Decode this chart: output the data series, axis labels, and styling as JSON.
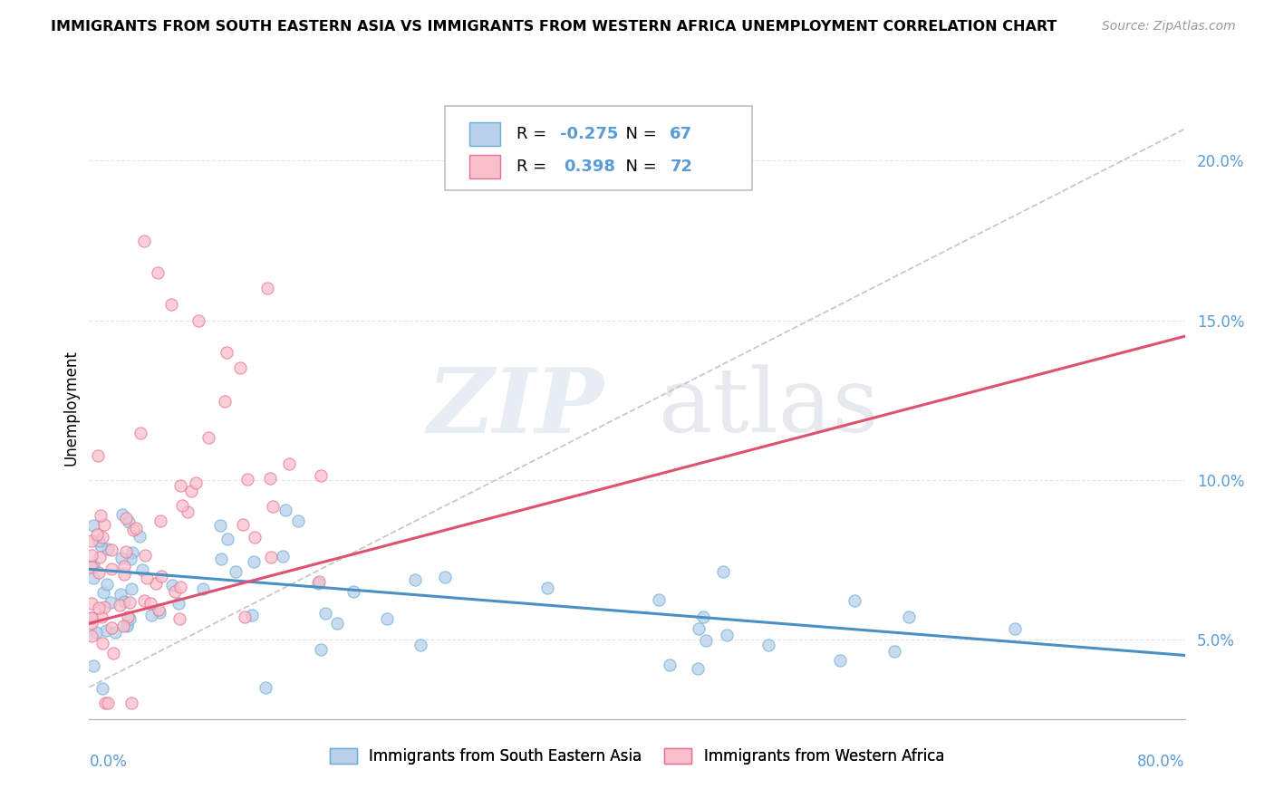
{
  "title": "IMMIGRANTS FROM SOUTH EASTERN ASIA VS IMMIGRANTS FROM WESTERN AFRICA UNEMPLOYMENT CORRELATION CHART",
  "source": "Source: ZipAtlas.com",
  "ylabel": "Unemployment",
  "y_ticks": [
    5.0,
    10.0,
    15.0,
    20.0
  ],
  "y_tick_labels": [
    "5.0%",
    "10.0%",
    "15.0%",
    "20.0%"
  ],
  "xlim": [
    0,
    80
  ],
  "ylim": [
    2.5,
    22.0
  ],
  "legend_blue_r": "-0.275",
  "legend_blue_n": "67",
  "legend_pink_r": "0.398",
  "legend_pink_n": "72",
  "color_blue_fill": "#b8d0ea",
  "color_blue_edge": "#6baed6",
  "color_blue_line": "#4a90c4",
  "color_pink_fill": "#f9bfcc",
  "color_pink_edge": "#e87090",
  "color_pink_line": "#e05070",
  "color_ref_line": "#c8c8c8",
  "color_ytick": "#5b9bd5",
  "watermark_zip": "ZIP",
  "watermark_atlas": "atlas",
  "grid_color": "#e0e0e0",
  "blue_line_x0": 0,
  "blue_line_x1": 80,
  "blue_line_y0": 7.2,
  "blue_line_y1": 4.5,
  "pink_line_x0": 0,
  "pink_line_x1": 80,
  "pink_line_y0": 5.5,
  "pink_line_y1": 14.5,
  "ref_line_x0": 0,
  "ref_line_x1": 80,
  "ref_line_y0": 3.5,
  "ref_line_y1": 21.0
}
